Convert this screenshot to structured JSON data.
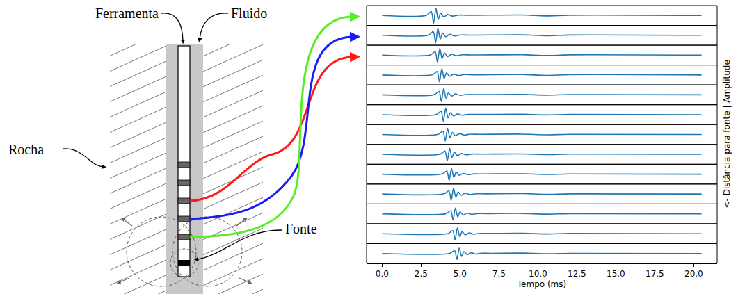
{
  "diagram": {
    "labels": {
      "tool": "Ferramenta",
      "fluid": "Fluido",
      "rock": "Rocha",
      "source": "Fonte"
    }
  },
  "chart_data": {
    "type": "line",
    "xlabel": "Tempo (ms)",
    "ylabel": "<- Distância para fonte | Amplitude",
    "xlim": [
      -1.0,
      21.5
    ],
    "xticks": [
      {
        "value": 0,
        "label": "0.0"
      },
      2.5,
      {
        "value": 5,
        "label": "5.0"
      },
      7.5,
      {
        "value": 10,
        "label": "10.0"
      },
      12.5,
      {
        "value": 15,
        "label": "15.0"
      },
      17.5,
      {
        "value": 20,
        "label": "20.0"
      }
    ],
    "ylim": [
      -1,
      1
    ],
    "grid": false,
    "tick_labels": "x",
    "series": [
      {
        "color": "#1f77b4",
        "x": [
          0,
          2.85,
          3.15,
          3.3,
          3.45,
          3.6,
          3.75,
          3.95,
          4.2,
          4.5,
          4.9,
          5.5,
          9.0,
          10.5,
          12.0,
          20.5
        ],
        "values": [
          0,
          0.02,
          0.4,
          -0.8,
          0.75,
          -0.4,
          0.25,
          -0.15,
          0.1,
          -0.06,
          0.04,
          0.02,
          0.05,
          -0.04,
          0.03,
          0
        ]
      },
      {
        "color": "#1f77b4",
        "x": [
          0,
          2.98,
          3.28,
          3.43,
          3.58,
          3.73,
          3.88,
          4.08,
          4.33,
          4.63,
          5.03,
          5.63,
          9.0,
          10.5,
          12.0,
          20.5
        ],
        "values": [
          0,
          0.02,
          0.38,
          -0.76,
          0.71,
          -0.38,
          0.24,
          -0.14,
          0.1,
          -0.06,
          0.04,
          0.02,
          0.05,
          -0.04,
          0.03,
          0
        ]
      },
      {
        "color": "#1f77b4",
        "x": [
          0,
          3.1,
          3.4,
          3.55,
          3.7,
          3.85,
          4.0,
          4.2,
          4.45,
          4.75,
          5.15,
          5.75,
          9.0,
          10.5,
          12.0,
          20.5
        ],
        "values": [
          0,
          0.02,
          0.36,
          -0.72,
          0.68,
          -0.36,
          0.23,
          -0.14,
          0.09,
          -0.05,
          0.04,
          0.02,
          0.05,
          -0.04,
          0.03,
          0
        ]
      },
      {
        "color": "#1f77b4",
        "x": [
          0,
          3.23,
          3.53,
          3.68,
          3.83,
          3.98,
          4.13,
          4.33,
          4.58,
          4.88,
          5.28,
          5.88,
          9.0,
          10.5,
          12.0,
          20.5
        ],
        "values": [
          0,
          0.02,
          0.35,
          -0.7,
          0.66,
          -0.35,
          0.22,
          -0.13,
          0.09,
          -0.05,
          0.04,
          0.02,
          0.04,
          -0.04,
          0.03,
          0
        ]
      },
      {
        "color": "#1f77b4",
        "x": [
          0,
          3.35,
          3.65,
          3.8,
          3.95,
          4.1,
          4.25,
          4.45,
          4.7,
          5.0,
          5.4,
          6.0,
          9.0,
          10.5,
          12.0,
          20.5
        ],
        "values": [
          0,
          0.02,
          0.34,
          -0.68,
          0.64,
          -0.34,
          0.21,
          -0.13,
          0.09,
          -0.05,
          0.03,
          0.02,
          0.04,
          -0.03,
          0.03,
          0
        ]
      },
      {
        "color": "#1f77b4",
        "x": [
          0,
          3.48,
          3.78,
          3.93,
          4.08,
          4.23,
          4.38,
          4.58,
          4.83,
          5.13,
          5.53,
          6.13,
          9.0,
          10.5,
          12.0,
          20.5
        ],
        "values": [
          0,
          0.02,
          0.34,
          -0.68,
          0.64,
          -0.34,
          0.21,
          -0.13,
          0.09,
          -0.05,
          0.03,
          0.02,
          0.04,
          -0.03,
          0.03,
          0
        ]
      },
      {
        "color": "#1f77b4",
        "x": [
          0,
          3.6,
          3.9,
          4.05,
          4.2,
          4.35,
          4.5,
          4.7,
          4.95,
          5.25,
          5.65,
          6.25,
          9.0,
          10.5,
          12.0,
          20.5
        ],
        "values": [
          0,
          0.02,
          0.33,
          -0.66,
          0.62,
          -0.33,
          0.21,
          -0.12,
          0.08,
          -0.05,
          0.03,
          0.02,
          0.04,
          -0.03,
          0.02,
          0
        ]
      },
      {
        "color": "#1f77b4",
        "x": [
          0,
          3.73,
          4.03,
          4.18,
          4.33,
          4.48,
          4.63,
          4.83,
          5.08,
          5.38,
          5.78,
          6.38,
          9.0,
          10.5,
          12.0,
          20.5
        ],
        "values": [
          0,
          0.02,
          0.33,
          -0.66,
          0.62,
          -0.33,
          0.21,
          -0.12,
          0.08,
          -0.05,
          0.03,
          0.02,
          0.04,
          -0.03,
          0.02,
          0
        ]
      },
      {
        "color": "#1f77b4",
        "x": [
          0,
          3.85,
          4.15,
          4.3,
          4.45,
          4.6,
          4.75,
          4.95,
          5.2,
          5.5,
          5.9,
          6.5,
          9.0,
          10.5,
          12.0,
          20.5
        ],
        "values": [
          0,
          0.02,
          0.32,
          -0.64,
          0.6,
          -0.32,
          0.2,
          -0.12,
          0.08,
          -0.05,
          0.03,
          0.02,
          0.04,
          -0.03,
          0.02,
          0
        ]
      },
      {
        "color": "#1f77b4",
        "x": [
          0,
          3.98,
          4.28,
          4.43,
          4.58,
          4.73,
          4.88,
          5.08,
          5.33,
          5.63,
          6.03,
          6.63,
          9.0,
          10.5,
          12.0,
          20.5
        ],
        "values": [
          0,
          0.02,
          0.32,
          -0.64,
          0.6,
          -0.32,
          0.2,
          -0.12,
          0.08,
          -0.05,
          0.03,
          0.02,
          0.04,
          -0.03,
          0.02,
          0
        ]
      },
      {
        "color": "#1f77b4",
        "x": [
          0,
          4.1,
          4.4,
          4.55,
          4.7,
          4.85,
          5.0,
          5.2,
          5.45,
          5.75,
          6.15,
          6.75,
          9.0,
          10.5,
          12.0,
          20.5
        ],
        "values": [
          0,
          0.02,
          0.31,
          -0.62,
          0.59,
          -0.31,
          0.2,
          -0.12,
          0.08,
          -0.05,
          0.03,
          0.02,
          0.04,
          -0.03,
          0.02,
          0
        ]
      },
      {
        "color": "#1f77b4",
        "x": [
          0,
          4.23,
          4.53,
          4.68,
          4.83,
          4.98,
          5.13,
          5.33,
          5.58,
          5.88,
          6.28,
          6.88,
          9.0,
          10.5,
          12.0,
          20.5
        ],
        "values": [
          0,
          0.02,
          0.31,
          -0.62,
          0.59,
          -0.31,
          0.2,
          -0.12,
          0.08,
          -0.05,
          0.03,
          0.02,
          0.04,
          -0.03,
          0.02,
          0
        ]
      },
      {
        "color": "#1f77b4",
        "x": [
          0,
          4.35,
          4.65,
          4.8,
          4.95,
          5.1,
          5.25,
          5.45,
          5.7,
          6.0,
          6.4,
          7.0,
          9.0,
          10.5,
          12.0,
          20.5
        ],
        "values": [
          0,
          0.02,
          0.3,
          -0.6,
          0.56,
          -0.3,
          0.19,
          -0.11,
          0.08,
          -0.05,
          0.03,
          0.02,
          0.04,
          -0.03,
          0.02,
          0
        ]
      }
    ]
  }
}
